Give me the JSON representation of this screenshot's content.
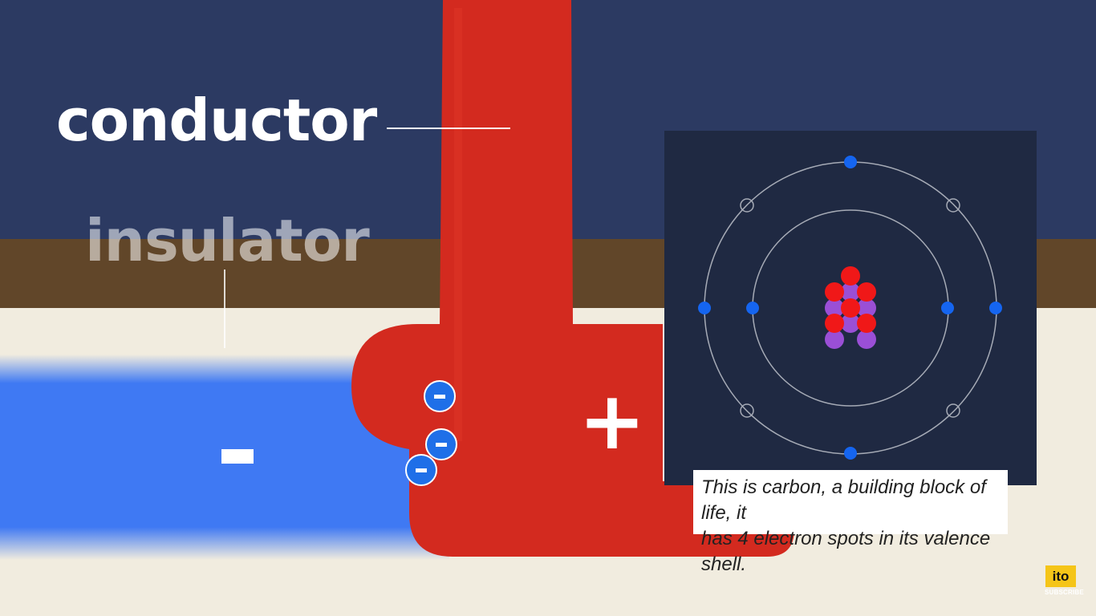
{
  "labels": {
    "conductor": "conductor",
    "insulator": "insulator",
    "plus": "+",
    "minus": "-"
  },
  "electrons": {
    "count": 3,
    "symbol": "-"
  },
  "atom": {
    "name": "carbon",
    "shells": [
      {
        "electrons": 2,
        "empty_spots": 0
      },
      {
        "electrons": 4,
        "empty_spots": 4
      }
    ],
    "nucleus": {
      "protons": 6,
      "neutrons": 6
    }
  },
  "caption": {
    "line1": "This is carbon, a building block of life, it",
    "line2": "has 4 electron spots in its valence shell."
  },
  "branding": {
    "logo_text": "ito",
    "subscribe_label": "SUBSCRIBE"
  },
  "colors": {
    "sky": "#2c3a62",
    "soil": "#614629",
    "ground": "#f1ecdf",
    "conductor": "#d32a1f",
    "insulator": "#3f79f3",
    "electron": "#1f6fe8",
    "proton": "#f01818",
    "neutron": "#9a4fd6",
    "panel": "#1f2942"
  }
}
